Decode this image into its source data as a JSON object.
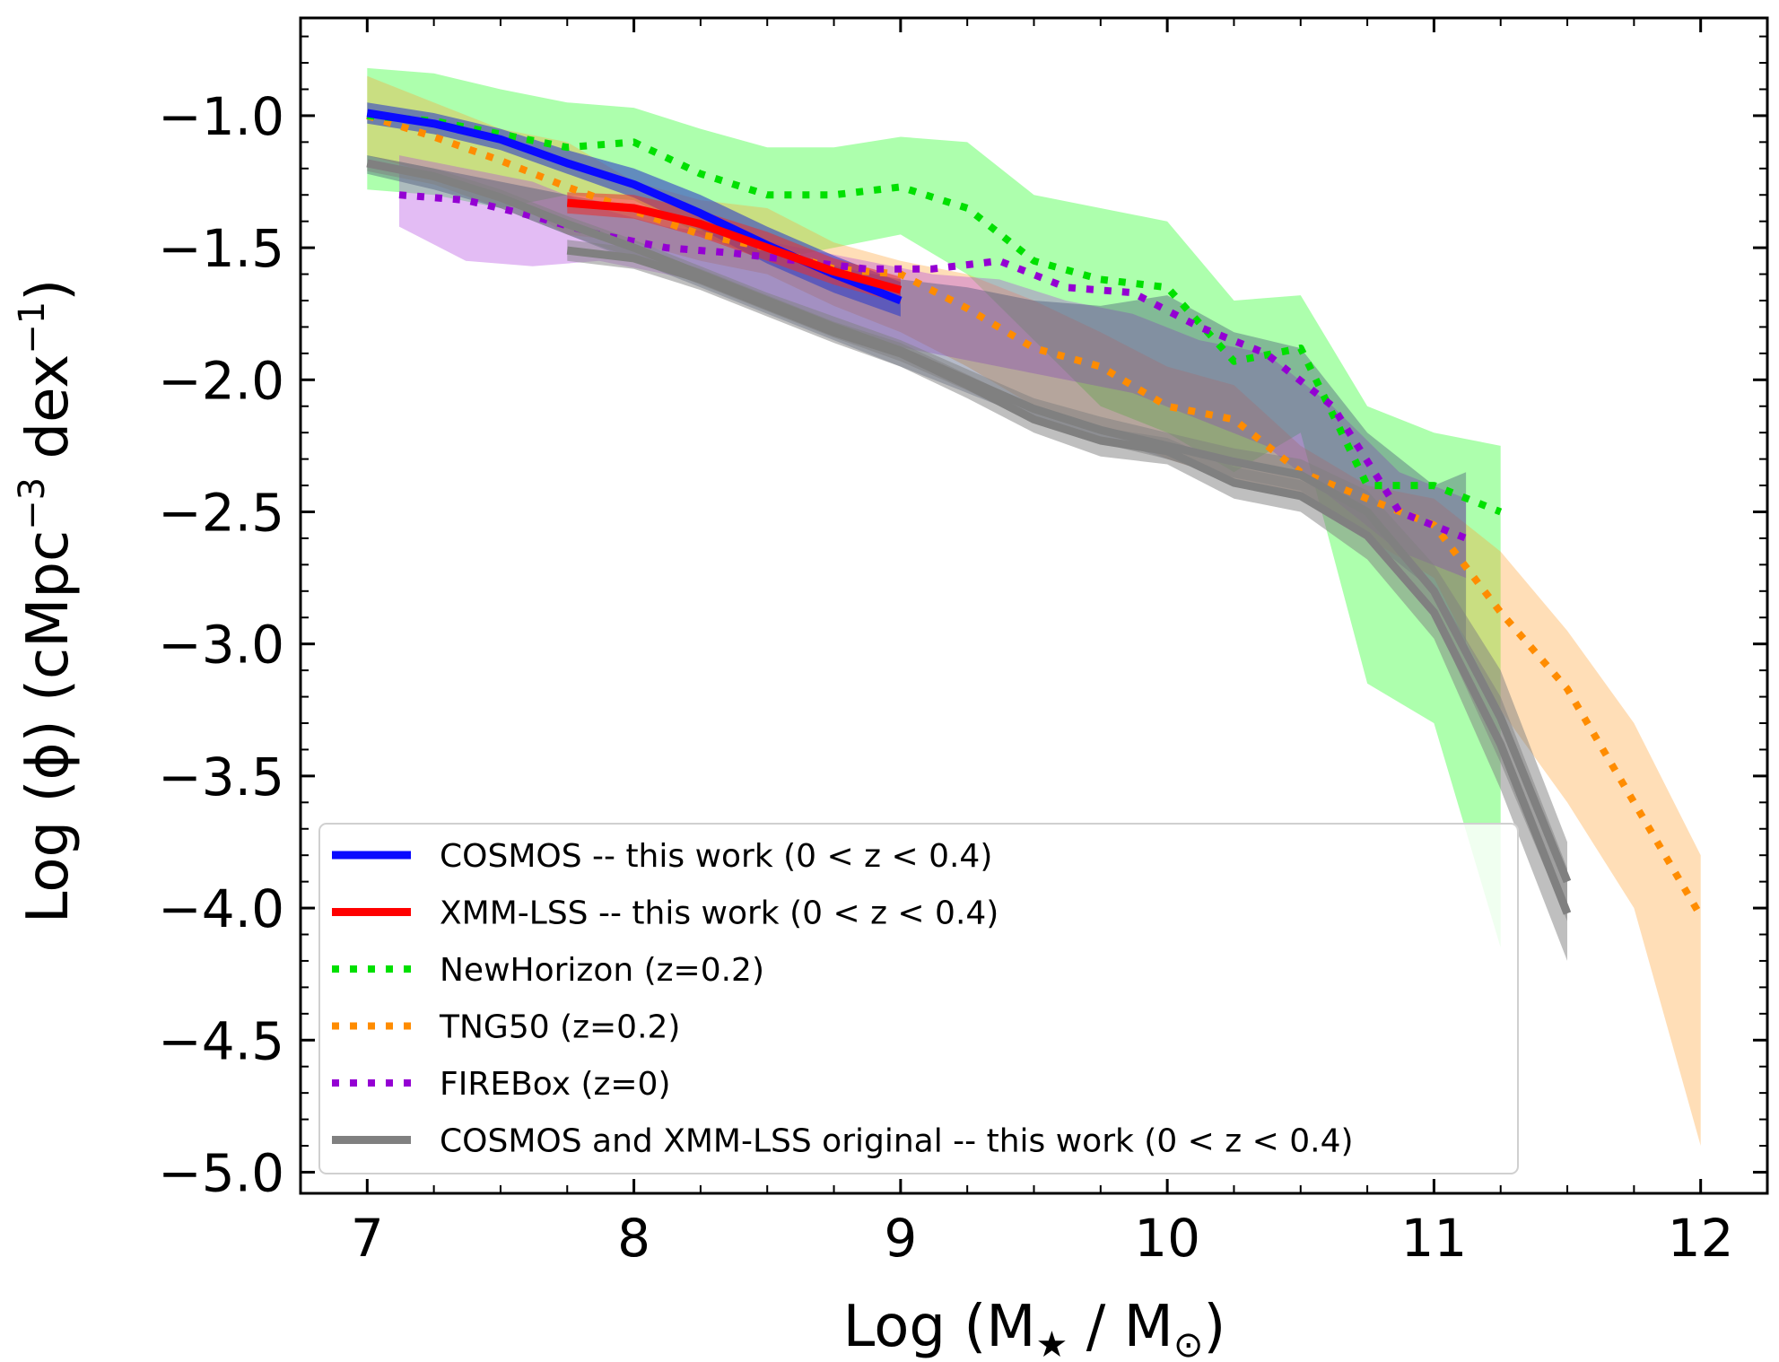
{
  "chart_data": {
    "type": "line",
    "title": "",
    "xlabel": {
      "prefix": "Log (M",
      "sub1": "★",
      "mid": " / M",
      "sub2": "⊙",
      "suffix": ")"
    },
    "ylabel": {
      "prefix": "Log (ϕ)  (cMpc",
      "sup1": "−3",
      "mid": " dex",
      "sup2": "−1",
      "suffix": ")"
    },
    "xlim": [
      6.75,
      12.25
    ],
    "ylim": [
      -5.08,
      -0.63
    ],
    "xticks": [
      7,
      8,
      9,
      10,
      11,
      12
    ],
    "xtick_labels": [
      "7",
      "8",
      "9",
      "10",
      "11",
      "12"
    ],
    "yticks": [
      -1.0,
      -1.5,
      -2.0,
      -2.5,
      -3.0,
      -3.5,
      -4.0,
      -4.5,
      -5.0
    ],
    "ytick_labels": [
      "−1.0",
      "−1.5",
      "−2.0",
      "−2.5",
      "−3.0",
      "−3.5",
      "−4.0",
      "−4.5",
      "−5.0"
    ],
    "legend_position": "lower-left",
    "colors": {
      "cosmos": "#0a0aff",
      "xmm": "#ff0000",
      "newhorizon": "#00e000",
      "tng50": "#ff8c00",
      "firebox": "#9400d3",
      "original": "#808080"
    },
    "bands": [
      {
        "name": "NewHorizon band",
        "color": "#00ff00",
        "opacity": 0.32,
        "x": [
          7.0,
          7.25,
          7.5,
          7.75,
          8.0,
          8.25,
          8.5,
          8.75,
          9.0,
          9.25,
          9.5,
          9.75,
          10.0,
          10.25,
          10.5,
          10.75,
          11.0,
          11.25
        ],
        "upper": [
          -0.82,
          -0.84,
          -0.9,
          -0.95,
          -0.97,
          -1.05,
          -1.12,
          -1.12,
          -1.08,
          -1.1,
          -1.3,
          -1.35,
          -1.4,
          -1.7,
          -1.68,
          -2.1,
          -2.2,
          -2.25
        ],
        "lower": [
          -1.28,
          -1.3,
          -1.35,
          -1.3,
          -1.32,
          -1.45,
          -1.55,
          -1.5,
          -1.45,
          -1.6,
          -1.85,
          -2.1,
          -2.2,
          -2.35,
          -2.2,
          -3.15,
          -3.3,
          -4.15
        ]
      },
      {
        "name": "TNG50 band",
        "color": "#ffa030",
        "opacity": 0.35,
        "x": [
          7.0,
          7.25,
          7.5,
          7.75,
          8.0,
          8.25,
          8.5,
          8.75,
          9.0,
          9.25,
          9.5,
          9.75,
          10.0,
          10.25,
          10.5,
          10.75,
          11.0,
          11.25,
          11.5,
          11.75,
          12.0
        ],
        "upper": [
          -0.85,
          -0.95,
          -1.05,
          -1.1,
          -1.25,
          -1.32,
          -1.35,
          -1.48,
          -1.55,
          -1.6,
          -1.7,
          -1.82,
          -1.95,
          -2.02,
          -2.25,
          -2.4,
          -2.45,
          -2.65,
          -2.95,
          -3.3,
          -3.8
        ],
        "lower": [
          -1.15,
          -1.22,
          -1.3,
          -1.45,
          -1.48,
          -1.55,
          -1.6,
          -1.72,
          -1.82,
          -1.95,
          -2.1,
          -2.18,
          -2.3,
          -2.38,
          -2.45,
          -2.6,
          -2.75,
          -3.25,
          -3.6,
          -4.0,
          -4.9
        ]
      },
      {
        "name": "FIREBox band",
        "color": "#b040e0",
        "opacity": 0.35,
        "x": [
          7.12,
          7.37,
          7.62,
          7.87,
          8.12,
          8.37,
          8.62,
          8.87,
          9.12,
          9.37,
          9.62,
          9.87,
          10.12,
          10.37,
          10.62,
          10.87,
          11.12
        ],
        "upper": [
          -1.15,
          -1.2,
          -1.25,
          -1.35,
          -1.42,
          -1.45,
          -1.5,
          -1.55,
          -1.6,
          -1.62,
          -1.7,
          -1.75,
          -1.85,
          -1.9,
          -2.1,
          -2.35,
          -2.45
        ],
        "lower": [
          -1.42,
          -1.55,
          -1.57,
          -1.55,
          -1.6,
          -1.65,
          -1.78,
          -1.85,
          -1.9,
          -1.95,
          -2.0,
          -2.05,
          -2.15,
          -2.25,
          -2.45,
          -2.65,
          -2.75
        ]
      },
      {
        "name": "combined grey band",
        "color": "#3c4a72",
        "opacity": 0.38,
        "x": [
          7.0,
          7.25,
          7.5,
          7.75,
          8.0,
          8.25,
          8.5,
          8.75,
          9.0,
          9.25,
          9.5,
          9.75,
          10.0,
          10.25,
          10.5,
          10.75,
          11.0,
          11.12
        ],
        "upper": [
          -1.15,
          -1.2,
          -1.25,
          -1.3,
          -1.35,
          -1.4,
          -1.5,
          -1.57,
          -1.62,
          -1.65,
          -1.7,
          -1.72,
          -1.68,
          -1.82,
          -1.88,
          -2.2,
          -2.4,
          -2.35
        ],
        "lower": [
          -1.22,
          -1.28,
          -1.35,
          -1.45,
          -1.55,
          -1.65,
          -1.75,
          -1.85,
          -1.95,
          -2.05,
          -2.15,
          -2.22,
          -2.3,
          -2.38,
          -2.45,
          -2.6,
          -2.8,
          -3.05
        ]
      },
      {
        "name": "COSMOS band",
        "color": "#3040c8",
        "opacity": 0.6,
        "x": [
          7.0,
          7.25,
          7.5,
          7.75,
          8.0,
          8.25,
          8.5,
          8.75,
          9.0
        ],
        "upper": [
          -0.95,
          -0.99,
          -1.05,
          -1.13,
          -1.2,
          -1.3,
          -1.42,
          -1.53,
          -1.63
        ],
        "lower": [
          -1.03,
          -1.07,
          -1.13,
          -1.22,
          -1.31,
          -1.43,
          -1.56,
          -1.67,
          -1.76
        ]
      },
      {
        "name": "XMM-LSS band",
        "color": "#e83030",
        "opacity": 0.55,
        "x": [
          7.75,
          8.0,
          8.25,
          8.5,
          8.75,
          9.0
        ],
        "upper": [
          -1.29,
          -1.3,
          -1.36,
          -1.44,
          -1.54,
          -1.61
        ],
        "lower": [
          -1.37,
          -1.39,
          -1.46,
          -1.55,
          -1.64,
          -1.71
        ]
      },
      {
        "name": "COSMOS original band",
        "color": "#808080",
        "opacity": 0.5,
        "x": [
          7.0,
          7.25,
          7.5,
          7.75,
          8.0,
          8.25,
          8.5,
          8.75,
          9.0,
          9.25,
          9.5,
          9.75,
          10.0,
          10.25,
          10.5,
          10.75,
          11.0,
          11.25,
          11.5
        ],
        "upper": [
          -1.15,
          -1.2,
          -1.28,
          -1.38,
          -1.47,
          -1.57,
          -1.67,
          -1.76,
          -1.85,
          -1.96,
          -2.07,
          -2.14,
          -2.2,
          -2.26,
          -2.3,
          -2.42,
          -2.7,
          -3.1,
          -3.75
        ],
        "lower": [
          -1.21,
          -1.26,
          -1.35,
          -1.45,
          -1.54,
          -1.64,
          -1.74,
          -1.84,
          -1.93,
          -2.04,
          -2.16,
          -2.24,
          -2.3,
          -2.37,
          -2.42,
          -2.58,
          -2.9,
          -3.45,
          -4.05
        ]
      },
      {
        "name": "XMM-LSS original band",
        "color": "#808080",
        "opacity": 0.5,
        "x": [
          7.75,
          8.0,
          8.25,
          8.5,
          8.75,
          9.0,
          9.25,
          9.5,
          9.75,
          10.0,
          10.25,
          10.5,
          10.75,
          11.0,
          11.25,
          11.5
        ],
        "upper": [
          -1.47,
          -1.5,
          -1.58,
          -1.68,
          -1.78,
          -1.86,
          -1.98,
          -2.1,
          -2.18,
          -2.22,
          -2.33,
          -2.38,
          -2.5,
          -2.78,
          -3.2,
          -3.85
        ],
        "lower": [
          -1.55,
          -1.58,
          -1.66,
          -1.76,
          -1.86,
          -1.95,
          -2.07,
          -2.2,
          -2.29,
          -2.32,
          -2.45,
          -2.5,
          -2.68,
          -2.98,
          -3.55,
          -4.2
        ]
      }
    ],
    "series": [
      {
        "name": "TNG50 (z=0.2)",
        "color": "#ff8c00",
        "style": "dotted",
        "in_legend": true,
        "x": [
          7.0,
          7.25,
          7.5,
          7.75,
          8.0,
          8.25,
          8.5,
          8.75,
          9.0,
          9.25,
          9.5,
          9.75,
          10.0,
          10.25,
          10.5,
          10.75,
          11.0,
          11.25,
          11.5,
          11.75,
          12.0
        ],
        "y": [
          -1.0,
          -1.08,
          -1.17,
          -1.27,
          -1.36,
          -1.45,
          -1.5,
          -1.58,
          -1.6,
          -1.73,
          -1.88,
          -1.95,
          -2.1,
          -2.15,
          -2.35,
          -2.45,
          -2.55,
          -2.88,
          -3.17,
          -3.6,
          -4.03
        ]
      },
      {
        "name": "NewHorizon (z=0.2)",
        "color": "#00e000",
        "style": "dotted",
        "in_legend": true,
        "x": [
          7.0,
          7.25,
          7.5,
          7.75,
          8.0,
          8.25,
          8.5,
          8.75,
          9.0,
          9.25,
          9.5,
          9.75,
          10.0,
          10.25,
          10.5,
          10.75,
          11.0,
          11.25
        ],
        "y": [
          -1.0,
          -1.02,
          -1.07,
          -1.12,
          -1.1,
          -1.22,
          -1.3,
          -1.3,
          -1.27,
          -1.35,
          -1.55,
          -1.62,
          -1.65,
          -1.93,
          -1.88,
          -2.4,
          -2.4,
          -2.5
        ]
      },
      {
        "name": "FIREBox (z=0)",
        "color": "#9400d3",
        "style": "dotted",
        "in_legend": true,
        "x": [
          7.12,
          7.37,
          7.62,
          7.87,
          8.12,
          8.37,
          8.62,
          8.87,
          9.12,
          9.37,
          9.62,
          9.87,
          10.12,
          10.37,
          10.62,
          10.87,
          11.12
        ],
        "y": [
          -1.3,
          -1.32,
          -1.38,
          -1.45,
          -1.5,
          -1.52,
          -1.55,
          -1.58,
          -1.58,
          -1.55,
          -1.65,
          -1.67,
          -1.8,
          -1.9,
          -2.1,
          -2.5,
          -2.6
        ]
      },
      {
        "name": "COSMOS and XMM-LSS original -- this work (0 < z < 0.4)",
        "color": "#808080",
        "style": "solid",
        "in_legend": true,
        "x": [
          7.0,
          7.25,
          7.5,
          7.75,
          8.0,
          8.25,
          8.5,
          8.75,
          9.0,
          9.25,
          9.5,
          9.75,
          10.0,
          10.25,
          10.5,
          10.75,
          11.0,
          11.25,
          11.5
        ],
        "y": [
          -1.18,
          -1.23,
          -1.31,
          -1.41,
          -1.5,
          -1.6,
          -1.7,
          -1.8,
          -1.89,
          -2.0,
          -2.11,
          -2.19,
          -2.25,
          -2.31,
          -2.36,
          -2.5,
          -2.8,
          -3.28,
          -3.9
        ]
      },
      {
        "name": "XMM-LSS original (second grey line)",
        "color": "#808080",
        "style": "solid",
        "in_legend": false,
        "x": [
          7.75,
          8.0,
          8.25,
          8.5,
          8.75,
          9.0,
          9.25,
          9.5,
          9.75,
          10.0,
          10.25,
          10.5,
          10.75,
          11.0,
          11.25,
          11.5
        ],
        "y": [
          -1.51,
          -1.54,
          -1.62,
          -1.72,
          -1.82,
          -1.9,
          -2.02,
          -2.15,
          -2.23,
          -2.27,
          -2.39,
          -2.44,
          -2.59,
          -2.88,
          -3.38,
          -4.02
        ]
      },
      {
        "name": "COSMOS -- this work (0 < z < 0.4)",
        "color": "#0a0aff",
        "style": "solid",
        "in_legend": true,
        "x": [
          7.0,
          7.25,
          7.5,
          7.75,
          8.0,
          8.25,
          8.5,
          8.75,
          9.0
        ],
        "y": [
          -0.99,
          -1.03,
          -1.09,
          -1.18,
          -1.26,
          -1.37,
          -1.49,
          -1.6,
          -1.7
        ]
      },
      {
        "name": "XMM-LSS -- this work (0 < z < 0.4)",
        "color": "#ff0000",
        "style": "solid",
        "in_legend": true,
        "x": [
          7.75,
          8.0,
          8.25,
          8.5,
          8.75,
          9.0
        ],
        "y": [
          -1.33,
          -1.35,
          -1.41,
          -1.5,
          -1.59,
          -1.66
        ]
      }
    ],
    "legend": [
      {
        "label": "COSMOS -- this work (0 < z < 0.4)",
        "color": "#0a0aff",
        "style": "solid"
      },
      {
        "label": "XMM-LSS -- this work (0 < z < 0.4)",
        "color": "#ff0000",
        "style": "solid"
      },
      {
        "label": "NewHorizon (z=0.2)",
        "color": "#00e000",
        "style": "dotted"
      },
      {
        "label": "TNG50 (z=0.2)",
        "color": "#ff8c00",
        "style": "dotted"
      },
      {
        "label": "FIREBox (z=0)",
        "color": "#9400d3",
        "style": "dotted"
      },
      {
        "label": "COSMOS and XMM-LSS original -- this work (0 < z < 0.4)",
        "color": "#808080",
        "style": "solid"
      }
    ]
  }
}
